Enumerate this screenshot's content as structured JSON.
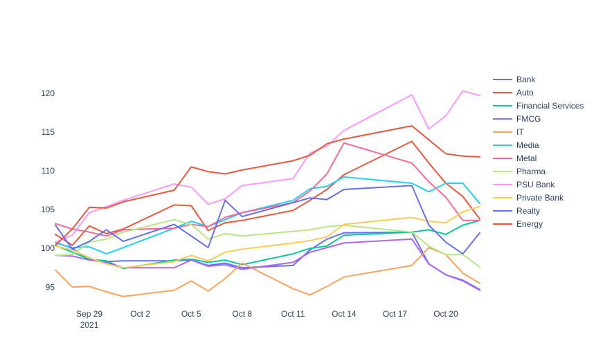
{
  "chart_data": {
    "type": "line",
    "title": "",
    "xlabel": "",
    "ylabel": "",
    "x": [
      "2021-09-27",
      "2021-09-28",
      "2021-09-29",
      "2021-09-30",
      "2021-10-01",
      "2021-10-04",
      "2021-10-05",
      "2021-10-06",
      "2021-10-07",
      "2021-10-08",
      "2021-10-11",
      "2021-10-12",
      "2021-10-13",
      "2021-10-14",
      "2021-10-18",
      "2021-10-19",
      "2021-10-20",
      "2021-10-21",
      "2021-10-22"
    ],
    "xlim": [
      "2021-09-27",
      "2021-10-22"
    ],
    "ylim": [
      92.8,
      124.0
    ],
    "x_ticks": [
      {
        "date": "2021-09-29",
        "label": "Sep 29",
        "sublabel": "2021"
      },
      {
        "date": "2021-10-02",
        "label": "Oct 2",
        "sublabel": ""
      },
      {
        "date": "2021-10-05",
        "label": "Oct 5",
        "sublabel": ""
      },
      {
        "date": "2021-10-08",
        "label": "Oct 8",
        "sublabel": ""
      },
      {
        "date": "2021-10-11",
        "label": "Oct 11",
        "sublabel": ""
      },
      {
        "date": "2021-10-14",
        "label": "Oct 14",
        "sublabel": ""
      },
      {
        "date": "2021-10-17",
        "label": "Oct 17",
        "sublabel": ""
      },
      {
        "date": "2021-10-20",
        "label": "Oct 20",
        "sublabel": ""
      }
    ],
    "y_ticks": [
      95,
      100,
      105,
      110,
      115,
      120
    ],
    "grid": false,
    "legend_position": "right",
    "series": [
      {
        "name": "Bank",
        "color": "#636efa",
        "values": [
          100.8,
          100.0,
          98.5,
          98.3,
          98.4,
          98.4,
          98.5,
          97.8,
          98.1,
          97.5,
          97.8,
          99.8,
          101.2,
          102.0,
          102.1,
          98.0,
          96.6,
          95.9,
          94.7
        ]
      },
      {
        "name": "Auto",
        "color": "#EF553B",
        "values": [
          101.8,
          100.4,
          102.9,
          101.9,
          102.5,
          105.6,
          105.5,
          102.3,
          103.3,
          103.6,
          104.9,
          106.2,
          107.6,
          109.5,
          113.8,
          111.0,
          108.4,
          106.7,
          103.8
        ]
      },
      {
        "name": "Financial Services",
        "color": "#00cc96",
        "values": [
          100.4,
          99.5,
          98.6,
          98.4,
          97.4,
          98.5,
          98.6,
          98.2,
          98.5,
          97.9,
          99.3,
          100.0,
          100.3,
          101.7,
          102.1,
          102.4,
          101.8,
          103.0,
          103.6
        ]
      },
      {
        "name": "FMCG",
        "color": "#ab63fa",
        "values": [
          99.1,
          99.0,
          98.5,
          98.2,
          97.5,
          97.5,
          98.5,
          97.7,
          97.9,
          97.3,
          98.2,
          99.5,
          100.1,
          100.7,
          101.2,
          98.0,
          96.6,
          95.8,
          94.6
        ]
      },
      {
        "name": "IT",
        "color": "#FFA15A",
        "values": [
          97.2,
          95.0,
          95.1,
          94.4,
          93.8,
          94.6,
          95.8,
          94.5,
          96.1,
          98.1,
          94.8,
          94.0,
          95.1,
          96.3,
          97.8,
          100.1,
          99.2,
          96.8,
          95.5
        ]
      },
      {
        "name": "Media",
        "color": "#19d3f3",
        "values": [
          100.7,
          100.1,
          100.2,
          99.3,
          100.1,
          102.6,
          103.5,
          102.8,
          103.7,
          104.6,
          106.2,
          107.7,
          108.0,
          109.2,
          108.4,
          107.3,
          108.4,
          108.4,
          105.8
        ]
      },
      {
        "name": "Metal",
        "color": "#FF6692",
        "values": [
          103.2,
          102.5,
          102.1,
          101.6,
          102.4,
          102.6,
          103.1,
          102.8,
          104.0,
          104.6,
          105.9,
          107.4,
          109.6,
          113.6,
          111.0,
          108.6,
          106.6,
          103.6,
          103.6
        ]
      },
      {
        "name": "Pharma",
        "color": "#B6E880",
        "values": [
          99.1,
          99.2,
          100.8,
          101.2,
          102.1,
          103.7,
          103.1,
          101.2,
          101.9,
          101.6,
          102.2,
          102.4,
          102.8,
          103.0,
          102.1,
          100.3,
          99.2,
          99.2,
          97.6
        ]
      },
      {
        "name": "PSU Bank",
        "color": "#FF97FF",
        "values": [
          100.8,
          101.7,
          104.6,
          105.4,
          106.2,
          108.3,
          107.9,
          105.7,
          106.4,
          108.1,
          109.0,
          112.3,
          113.2,
          115.2,
          119.8,
          115.4,
          117.1,
          120.3,
          119.7
        ]
      },
      {
        "name": "Private Bank",
        "color": "#FECB52",
        "values": [
          100.3,
          99.8,
          98.8,
          98.0,
          97.5,
          98.3,
          99.1,
          98.4,
          99.5,
          99.9,
          100.7,
          101.0,
          101.5,
          103.1,
          104.0,
          103.5,
          103.3,
          104.7,
          105.4
        ]
      },
      {
        "name": "Realty",
        "color": "#636efa",
        "values": [
          103.0,
          99.9,
          100.9,
          102.4,
          100.9,
          103.1,
          101.6,
          100.1,
          106.2,
          104.1,
          105.9,
          106.5,
          106.3,
          107.6,
          108.1,
          103.0,
          100.8,
          99.3,
          102.0
        ]
      },
      {
        "name": "Energy",
        "color": "#EF553B",
        "values": [
          100.4,
          102.5,
          105.3,
          105.2,
          106.0,
          107.5,
          110.5,
          109.9,
          109.6,
          110.1,
          111.3,
          112.0,
          113.5,
          114.1,
          115.8,
          114.0,
          112.2,
          111.9,
          111.8
        ]
      }
    ]
  }
}
